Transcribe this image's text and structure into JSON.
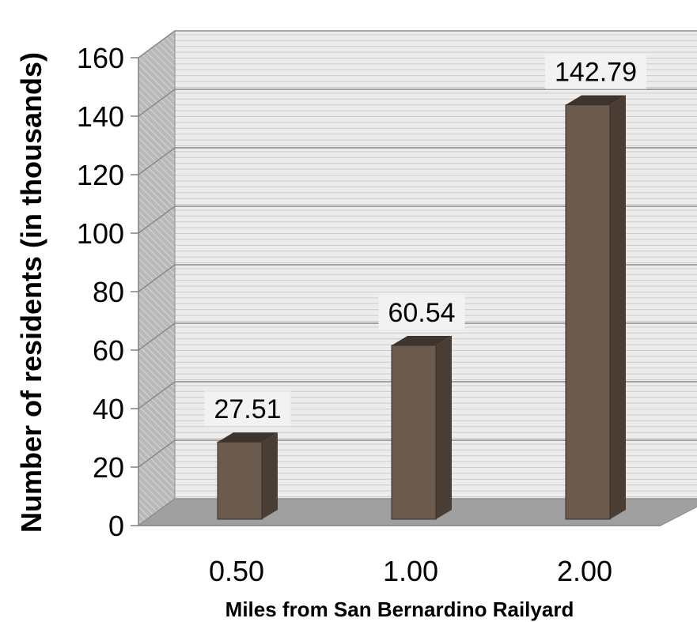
{
  "chart_data": {
    "type": "bar",
    "categories": [
      "0.50",
      "1.00",
      "2.00"
    ],
    "values": [
      27.51,
      60.54,
      142.79
    ],
    "value_labels": [
      "27.51",
      "60.54",
      "142.79"
    ],
    "xlabel": "Miles from San Bernardino Railyard",
    "ylabel": "Number of residents (in thousands)",
    "ylim": [
      0,
      160
    ],
    "yticks": [
      0,
      20,
      40,
      60,
      80,
      100,
      120,
      140,
      160
    ],
    "grid": true,
    "three_d": true,
    "colors": {
      "bar_front": "#6b5a4e",
      "bar_side": "#4a3d34",
      "bar_top": "#3f342c",
      "wall": "#e9e9e9",
      "side_wall": "#a6a6a6",
      "floor": "#a0a0a0",
      "grid": "#8a8a8a"
    }
  }
}
